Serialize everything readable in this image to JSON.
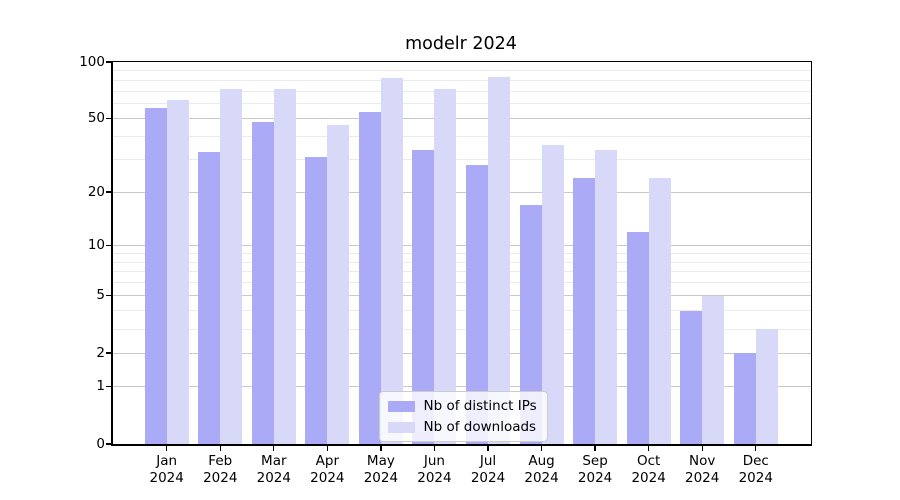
{
  "title": "modelr 2024",
  "chart_data": {
    "type": "bar",
    "title": "modelr 2024",
    "categories": [
      "Jan 2024",
      "Feb 2024",
      "Mar 2024",
      "Apr 2024",
      "May 2024",
      "Jun 2024",
      "Jul 2024",
      "Aug 2024",
      "Sep 2024",
      "Oct 2024",
      "Nov 2024",
      "Dec 2024"
    ],
    "series": [
      {
        "name": "Nb of distinct IPs",
        "color": "#aaaaf6",
        "values": [
          57,
          33,
          48,
          31,
          54,
          34,
          28,
          17,
          24,
          12,
          4,
          2
        ]
      },
      {
        "name": "Nb of downloads",
        "color": "#d8d8f8",
        "values": [
          63,
          72,
          72,
          46,
          82,
          72,
          83,
          36,
          34,
          24,
          5,
          3
        ]
      }
    ],
    "yscale": "log10(value+1)",
    "ylim": [
      0,
      100
    ],
    "y_major_ticks": [
      100,
      50,
      20,
      10,
      5,
      2,
      1,
      0
    ],
    "y_minor_gridlines": [
      90,
      80,
      70,
      60,
      40,
      30,
      9,
      8,
      7,
      6,
      4,
      3
    ],
    "grid": "horizontal",
    "legend": {
      "position": "lower-center",
      "labels": [
        "Nb of distinct IPs",
        "Nb of downloads"
      ]
    },
    "colors": {
      "major_gridline": "#c9c9c9",
      "minor_gridline": "#ebebeb",
      "spine": "#000000",
      "text": "#000000"
    }
  }
}
